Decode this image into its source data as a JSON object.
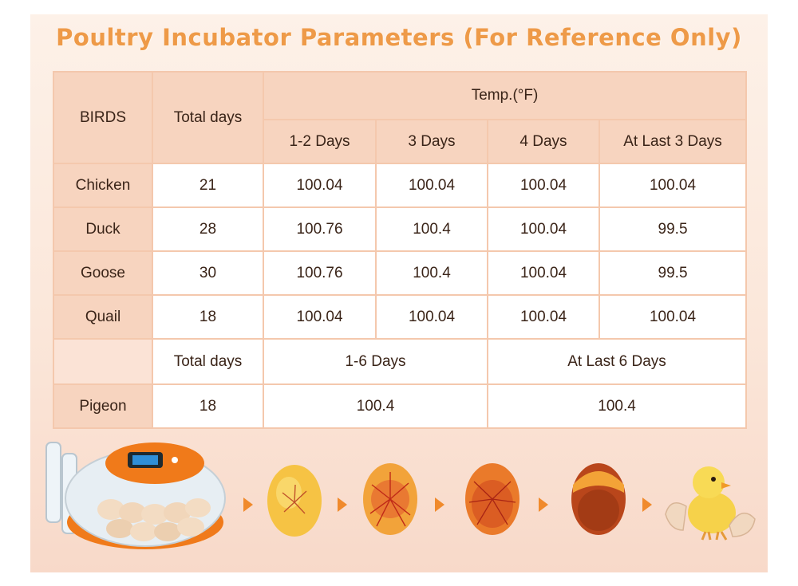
{
  "title": "Poultry Incubator Parameters (For Reference Only)",
  "table": {
    "birds_header": "BIRDS",
    "total_days_header": "Total days",
    "temp_header": "Temp.(°F)",
    "day_headers": [
      "1-2 Days",
      "3 Days",
      "4 Days",
      "At Last 3 Days"
    ],
    "rows": [
      {
        "bird": "Chicken",
        "total_days": "21",
        "d12": "100.04",
        "d3": "100.04",
        "d4": "100.04",
        "last3": "100.04"
      },
      {
        "bird": "Duck",
        "total_days": "28",
        "d12": "100.76",
        "d3": "100.4",
        "d4": "100.04",
        "last3": "99.5"
      },
      {
        "bird": "Goose",
        "total_days": "30",
        "d12": "100.76",
        "d3": "100.4",
        "d4": "100.04",
        "last3": "99.5"
      },
      {
        "bird": "Quail",
        "total_days": "18",
        "d12": "100.04",
        "d3": "100.04",
        "d4": "100.04",
        "last3": "100.04"
      }
    ],
    "pigeon_subheader": {
      "total_days": "Total days",
      "first": "1-6 Days",
      "last": "At Last 6 Days"
    },
    "pigeon_row": {
      "bird": "Pigeon",
      "total_days": "18",
      "first": "100.4",
      "last": "100.4"
    }
  },
  "colors": {
    "title": "#ee9a48",
    "header_fill": "#f7d4bf",
    "grid": "#f4c8ad",
    "arrow": "#f08a2c"
  },
  "illustration": {
    "icons": [
      "incubator-icon",
      "egg-stage-1-icon",
      "egg-stage-2-icon",
      "egg-stage-3-icon",
      "egg-stage-4-icon",
      "chick-icon"
    ]
  }
}
